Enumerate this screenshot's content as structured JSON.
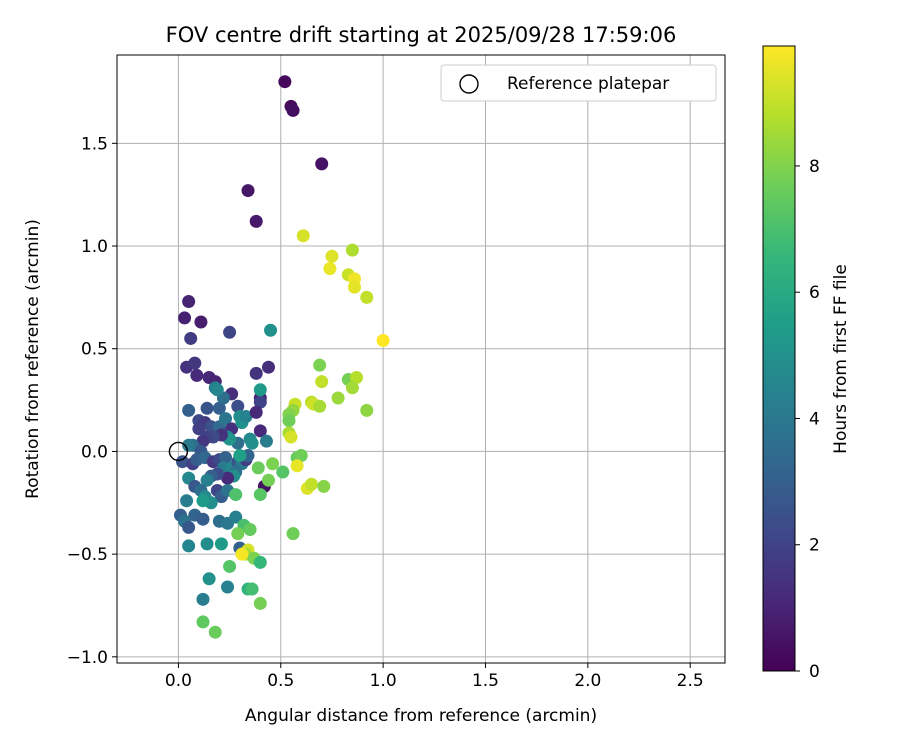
{
  "chart_data": {
    "type": "scatter",
    "title": "FOV centre drift starting at 2025/09/28 17:59:06",
    "xlabel": "Angular distance from reference (arcmin)",
    "ylabel": "Rotation from reference (arcmin)",
    "xlim": [
      -0.3,
      2.67
    ],
    "ylim": [
      -1.03,
      1.93
    ],
    "xticks": [
      0.0,
      0.5,
      1.0,
      1.5,
      2.0,
      2.5
    ],
    "xtick_labels": [
      "0.0",
      "0.5",
      "1.0",
      "1.5",
      "2.0",
      "2.5"
    ],
    "yticks": [
      -1.0,
      -0.5,
      0.0,
      0.5,
      1.0,
      1.5
    ],
    "ytick_labels": [
      "−1.0",
      "−0.5",
      "0.0",
      "0.5",
      "1.0",
      "1.5"
    ],
    "grid": true,
    "legend": {
      "position": "top-right",
      "entries": [
        "Reference platepar"
      ]
    },
    "reference_point": {
      "x": 0.0,
      "y": 0.0
    },
    "colorbar": {
      "label": "Hours from first FF file",
      "range": [
        0,
        9.9
      ],
      "ticks": [
        0,
        2,
        4,
        6,
        8
      ],
      "tick_labels": [
        "0",
        "2",
        "4",
        "6",
        "8"
      ],
      "colormap": "viridis"
    },
    "points": [
      {
        "x": 0.52,
        "y": 1.8,
        "h": 0.2
      },
      {
        "x": 0.55,
        "y": 1.68,
        "h": 0.3
      },
      {
        "x": 0.56,
        "y": 1.66,
        "h": 0.4
      },
      {
        "x": 0.7,
        "y": 1.4,
        "h": 0.5
      },
      {
        "x": 0.34,
        "y": 1.27,
        "h": 0.6
      },
      {
        "x": 0.38,
        "y": 1.12,
        "h": 0.7
      },
      {
        "x": 0.05,
        "y": 0.73,
        "h": 1.0
      },
      {
        "x": 0.03,
        "y": 0.65,
        "h": 0.9
      },
      {
        "x": 0.11,
        "y": 0.63,
        "h": 0.8
      },
      {
        "x": 0.06,
        "y": 0.55,
        "h": 1.8
      },
      {
        "x": 0.25,
        "y": 0.58,
        "h": 2.1
      },
      {
        "x": 0.44,
        "y": 0.41,
        "h": 1.3
      },
      {
        "x": 0.04,
        "y": 0.41,
        "h": 1.4
      },
      {
        "x": 0.08,
        "y": 0.43,
        "h": 1.6
      },
      {
        "x": 0.09,
        "y": 0.37,
        "h": 1.2
      },
      {
        "x": 0.15,
        "y": 0.36,
        "h": 1.1
      },
      {
        "x": 0.18,
        "y": 0.34,
        "h": 1.0
      },
      {
        "x": 0.38,
        "y": 0.38,
        "h": 1.5
      },
      {
        "x": 0.26,
        "y": 0.28,
        "h": 1.3
      },
      {
        "x": 0.4,
        "y": 0.26,
        "h": 0.9
      },
      {
        "x": 0.4,
        "y": 0.24,
        "h": 2.0
      },
      {
        "x": 0.29,
        "y": 0.22,
        "h": 2.4
      },
      {
        "x": 0.14,
        "y": 0.21,
        "h": 2.6
      },
      {
        "x": 0.2,
        "y": 0.21,
        "h": 3.0
      },
      {
        "x": 0.22,
        "y": 0.26,
        "h": 3.6
      },
      {
        "x": 0.18,
        "y": 0.31,
        "h": 4.2
      },
      {
        "x": 0.19,
        "y": 0.3,
        "h": 4.6
      },
      {
        "x": 0.05,
        "y": 0.2,
        "h": 3.0
      },
      {
        "x": 0.1,
        "y": 0.15,
        "h": 2.2
      },
      {
        "x": 0.13,
        "y": 0.14,
        "h": 1.7
      },
      {
        "x": 0.16,
        "y": 0.12,
        "h": 2.5
      },
      {
        "x": 0.1,
        "y": 0.11,
        "h": 1.9
      },
      {
        "x": 0.2,
        "y": 0.12,
        "h": 3.4
      },
      {
        "x": 0.23,
        "y": 0.16,
        "h": 3.9
      },
      {
        "x": 0.26,
        "y": 0.11,
        "h": 1.4
      },
      {
        "x": 0.3,
        "y": 0.17,
        "h": 4.8
      },
      {
        "x": 0.31,
        "y": 0.14,
        "h": 5.0
      },
      {
        "x": 0.33,
        "y": 0.17,
        "h": 4.4
      },
      {
        "x": 0.38,
        "y": 0.19,
        "h": 1.2
      },
      {
        "x": 0.4,
        "y": 0.3,
        "h": 5.4
      },
      {
        "x": 0.4,
        "y": 0.1,
        "h": 1.1
      },
      {
        "x": 0.43,
        "y": 0.05,
        "h": 4.1
      },
      {
        "x": 0.35,
        "y": 0.06,
        "h": 4.7
      },
      {
        "x": 0.36,
        "y": 0.04,
        "h": 4.9
      },
      {
        "x": 0.29,
        "y": 0.04,
        "h": 3.6
      },
      {
        "x": 0.24,
        "y": 0.07,
        "h": 4.5
      },
      {
        "x": 0.25,
        "y": 0.06,
        "h": 5.1
      },
      {
        "x": 0.21,
        "y": 0.08,
        "h": 1.5
      },
      {
        "x": 0.17,
        "y": 0.07,
        "h": 2.3
      },
      {
        "x": 0.14,
        "y": 0.07,
        "h": 2.0
      },
      {
        "x": 0.12,
        "y": 0.05,
        "h": 1.6
      },
      {
        "x": 0.07,
        "y": 0.03,
        "h": 3.5
      },
      {
        "x": 0.05,
        "y": 0.03,
        "h": 4.0
      },
      {
        "x": 0.11,
        "y": 0.0,
        "h": 2.8
      },
      {
        "x": 0.02,
        "y": -0.05,
        "h": 2.5
      },
      {
        "x": 0.07,
        "y": -0.06,
        "h": 1.9
      },
      {
        "x": 0.09,
        "y": -0.04,
        "h": 2.9
      },
      {
        "x": 0.13,
        "y": -0.03,
        "h": 3.3
      },
      {
        "x": 0.17,
        "y": -0.05,
        "h": 1.7
      },
      {
        "x": 0.2,
        "y": -0.04,
        "h": 2.2
      },
      {
        "x": 0.23,
        "y": -0.03,
        "h": 3.1
      },
      {
        "x": 0.22,
        "y": -0.08,
        "h": 4.1
      },
      {
        "x": 0.26,
        "y": -0.08,
        "h": 4.6
      },
      {
        "x": 0.29,
        "y": -0.05,
        "h": 2.6
      },
      {
        "x": 0.31,
        "y": -0.06,
        "h": 4.0
      },
      {
        "x": 0.33,
        "y": -0.04,
        "h": 1.8
      },
      {
        "x": 0.34,
        "y": -0.02,
        "h": 3.2
      },
      {
        "x": 0.28,
        "y": -0.1,
        "h": 3.7
      },
      {
        "x": 0.27,
        "y": -0.12,
        "h": 4.9
      },
      {
        "x": 0.24,
        "y": -0.13,
        "h": 1.2
      },
      {
        "x": 0.19,
        "y": -0.11,
        "h": 2.4
      },
      {
        "x": 0.16,
        "y": -0.12,
        "h": 3.0
      },
      {
        "x": 0.14,
        "y": -0.14,
        "h": 4.3
      },
      {
        "x": 0.05,
        "y": -0.13,
        "h": 4.6
      },
      {
        "x": 0.08,
        "y": -0.17,
        "h": 2.7
      },
      {
        "x": 0.11,
        "y": -0.19,
        "h": 3.5
      },
      {
        "x": 0.13,
        "y": -0.22,
        "h": 4.7
      },
      {
        "x": 0.19,
        "y": -0.19,
        "h": 2.1
      },
      {
        "x": 0.21,
        "y": -0.22,
        "h": 2.9
      },
      {
        "x": 0.24,
        "y": -0.19,
        "h": 3.8
      },
      {
        "x": 0.16,
        "y": -0.25,
        "h": 4.8
      },
      {
        "x": 0.12,
        "y": -0.24,
        "h": 5.4
      },
      {
        "x": 0.04,
        "y": -0.24,
        "h": 4.2
      },
      {
        "x": 0.42,
        "y": -0.17,
        "h": 0.5
      },
      {
        "x": 0.4,
        "y": -0.21,
        "h": 7.3
      },
      {
        "x": 0.44,
        "y": -0.14,
        "h": 7.8
      },
      {
        "x": 0.46,
        "y": -0.06,
        "h": 7.9
      },
      {
        "x": 0.39,
        "y": -0.08,
        "h": 7.6
      },
      {
        "x": 0.51,
        "y": -0.1,
        "h": 7.2
      },
      {
        "x": 0.58,
        "y": -0.03,
        "h": 7.5
      },
      {
        "x": 0.6,
        "y": -0.02,
        "h": 7.7
      },
      {
        "x": 0.58,
        "y": -0.07,
        "h": 9.6
      },
      {
        "x": 0.28,
        "y": -0.21,
        "h": 7.1
      },
      {
        "x": 0.01,
        "y": -0.31,
        "h": 3.0
      },
      {
        "x": 0.03,
        "y": -0.34,
        "h": 3.8
      },
      {
        "x": 0.05,
        "y": -0.37,
        "h": 2.7
      },
      {
        "x": 0.08,
        "y": -0.31,
        "h": 3.2
      },
      {
        "x": 0.12,
        "y": -0.33,
        "h": 2.9
      },
      {
        "x": 0.2,
        "y": -0.34,
        "h": 3.6
      },
      {
        "x": 0.24,
        "y": -0.35,
        "h": 4.0
      },
      {
        "x": 0.28,
        "y": -0.32,
        "h": 4.3
      },
      {
        "x": 0.32,
        "y": -0.36,
        "h": 7.0
      },
      {
        "x": 0.35,
        "y": -0.38,
        "h": 7.5
      },
      {
        "x": 0.29,
        "y": -0.4,
        "h": 7.8
      },
      {
        "x": 0.05,
        "y": -0.46,
        "h": 4.5
      },
      {
        "x": 0.14,
        "y": -0.45,
        "h": 4.8
      },
      {
        "x": 0.21,
        "y": -0.45,
        "h": 5.4
      },
      {
        "x": 0.3,
        "y": -0.47,
        "h": 3.1
      },
      {
        "x": 0.34,
        "y": -0.48,
        "h": 9.3
      },
      {
        "x": 0.33,
        "y": -0.5,
        "h": 8.6
      },
      {
        "x": 0.31,
        "y": -0.5,
        "h": 9.8
      },
      {
        "x": 0.37,
        "y": -0.52,
        "h": 7.9
      },
      {
        "x": 0.4,
        "y": -0.54,
        "h": 6.6
      },
      {
        "x": 0.56,
        "y": -0.4,
        "h": 7.7
      },
      {
        "x": 0.25,
        "y": -0.56,
        "h": 7.2
      },
      {
        "x": 0.15,
        "y": -0.62,
        "h": 5.0
      },
      {
        "x": 0.24,
        "y": -0.66,
        "h": 4.4
      },
      {
        "x": 0.34,
        "y": -0.67,
        "h": 6.4
      },
      {
        "x": 0.36,
        "y": -0.67,
        "h": 6.9
      },
      {
        "x": 0.12,
        "y": -0.72,
        "h": 4.2
      },
      {
        "x": 0.4,
        "y": -0.74,
        "h": 7.8
      },
      {
        "x": 0.12,
        "y": -0.83,
        "h": 7.4
      },
      {
        "x": 0.18,
        "y": -0.88,
        "h": 7.6
      },
      {
        "x": 0.61,
        "y": 1.05,
        "h": 9.3
      },
      {
        "x": 0.85,
        "y": 0.98,
        "h": 8.7
      },
      {
        "x": 0.75,
        "y": 0.95,
        "h": 9.4
      },
      {
        "x": 0.74,
        "y": 0.89,
        "h": 9.6
      },
      {
        "x": 0.83,
        "y": 0.86,
        "h": 9.1
      },
      {
        "x": 0.86,
        "y": 0.84,
        "h": 9.7
      },
      {
        "x": 0.86,
        "y": 0.8,
        "h": 9.5
      },
      {
        "x": 0.92,
        "y": 0.75,
        "h": 9.0
      },
      {
        "x": 1.0,
        "y": 0.54,
        "h": 9.9
      },
      {
        "x": 0.45,
        "y": 0.59,
        "h": 5.0
      },
      {
        "x": 0.69,
        "y": 0.42,
        "h": 7.9
      },
      {
        "x": 0.83,
        "y": 0.35,
        "h": 7.8
      },
      {
        "x": 0.87,
        "y": 0.36,
        "h": 8.8
      },
      {
        "x": 0.7,
        "y": 0.34,
        "h": 9.0
      },
      {
        "x": 0.85,
        "y": 0.31,
        "h": 8.5
      },
      {
        "x": 0.78,
        "y": 0.26,
        "h": 8.4
      },
      {
        "x": 0.65,
        "y": 0.24,
        "h": 8.9
      },
      {
        "x": 0.66,
        "y": 0.23,
        "h": 9.2
      },
      {
        "x": 0.57,
        "y": 0.23,
        "h": 9.1
      },
      {
        "x": 0.69,
        "y": 0.22,
        "h": 8.6
      },
      {
        "x": 0.92,
        "y": 0.2,
        "h": 8.2
      },
      {
        "x": 0.56,
        "y": 0.2,
        "h": 8.3
      },
      {
        "x": 0.54,
        "y": 0.18,
        "h": 8.0
      },
      {
        "x": 0.54,
        "y": 0.15,
        "h": 7.7
      },
      {
        "x": 0.54,
        "y": 0.09,
        "h": 8.6
      },
      {
        "x": 0.55,
        "y": 0.07,
        "h": 9.3
      },
      {
        "x": 0.63,
        "y": -0.18,
        "h": 9.4
      },
      {
        "x": 0.65,
        "y": -0.16,
        "h": 9.0
      },
      {
        "x": 0.71,
        "y": -0.17,
        "h": 8.1
      },
      {
        "x": 0.3,
        "y": -0.02,
        "h": 5.6
      }
    ]
  }
}
